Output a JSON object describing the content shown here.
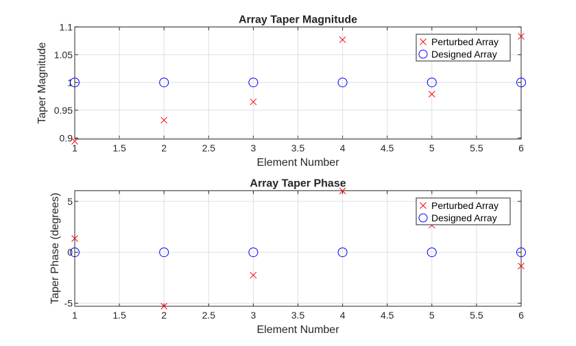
{
  "chart_data": [
    {
      "type": "scatter",
      "title": "Array Taper Magnitude",
      "xlabel": "Element Number",
      "ylabel": "Taper Magnitude",
      "xlim": [
        1,
        6
      ],
      "ylim": [
        0.898,
        1.1
      ],
      "xticks": [
        1,
        1.5,
        2,
        2.5,
        3,
        3.5,
        4,
        4.5,
        5,
        5.5,
        6
      ],
      "xtick_labels": [
        "1",
        "1.5",
        "2",
        "2.5",
        "3",
        "3.5",
        "4",
        "4.5",
        "5",
        "5.5",
        "6"
      ],
      "yticks": [
        0.9,
        0.95,
        1,
        1.05,
        1.1
      ],
      "ytick_labels": [
        "0.9",
        "0.95",
        "1",
        "1.05",
        "1.1"
      ],
      "grid": true,
      "legend_position": "top-right",
      "series": [
        {
          "name": "Perturbed Array",
          "marker": "x",
          "color": "#ff0000",
          "x": [
            1,
            2,
            3,
            4,
            5,
            6
          ],
          "y": [
            0.894,
            0.932,
            0.965,
            1.077,
            0.979,
            1.083
          ]
        },
        {
          "name": "Designed Array",
          "marker": "o",
          "color": "#0000ff",
          "x": [
            1,
            2,
            3,
            4,
            5,
            6
          ],
          "y": [
            1,
            1,
            1,
            1,
            1,
            1
          ]
        }
      ]
    },
    {
      "type": "scatter",
      "title": "Array Taper Phase",
      "xlabel": "Element Number",
      "ylabel": "Taper Phase (degrees)",
      "xlim": [
        1,
        6
      ],
      "ylim": [
        -5.3,
        6.05
      ],
      "xticks": [
        1,
        1.5,
        2,
        2.5,
        3,
        3.5,
        4,
        4.5,
        5,
        5.5,
        6
      ],
      "xtick_labels": [
        "1",
        "1.5",
        "2",
        "2.5",
        "3",
        "3.5",
        "4",
        "4.5",
        "5",
        "5.5",
        "6"
      ],
      "yticks": [
        -5,
        0,
        5
      ],
      "ytick_labels": [
        "-5",
        "0",
        "5"
      ],
      "grid": true,
      "legend_position": "top-right",
      "series": [
        {
          "name": "Perturbed Array",
          "marker": "x",
          "color": "#ff0000",
          "x": [
            1,
            2,
            3,
            4,
            5,
            6
          ],
          "y": [
            1.35,
            -5.3,
            -2.25,
            6.03,
            2.66,
            -1.35
          ]
        },
        {
          "name": "Designed Array",
          "marker": "o",
          "color": "#0000ff",
          "x": [
            1,
            2,
            3,
            4,
            5,
            6
          ],
          "y": [
            0,
            0,
            0,
            0,
            0,
            0
          ]
        }
      ]
    }
  ]
}
